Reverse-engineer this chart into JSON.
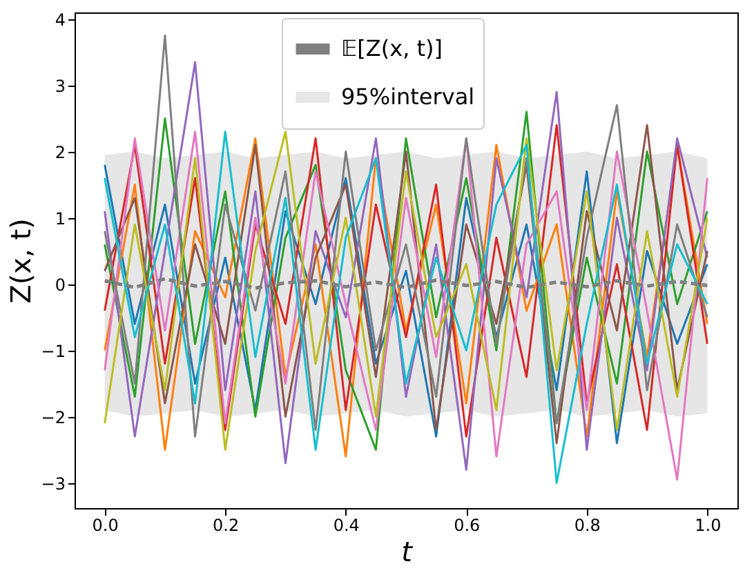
{
  "chart_data": {
    "type": "line",
    "xlabel": "t",
    "ylabel": "Z(x, t)",
    "x": [
      0,
      0.05,
      0.1,
      0.15,
      0.2,
      0.25,
      0.3,
      0.35,
      0.4,
      0.45,
      0.5,
      0.55,
      0.6,
      0.65,
      0.7,
      0.75,
      0.8,
      0.85,
      0.9,
      0.95,
      1.0
    ],
    "xlim": [
      -0.05,
      1.05
    ],
    "ylim": [
      -3.38,
      4.1
    ],
    "xticks": [
      {
        "value": 0,
        "label": "0.0"
      },
      0.2,
      0.4,
      0.6,
      0.8,
      {
        "value": 1,
        "label": "1.0"
      }
    ],
    "yticks": [
      {
        "value": -3,
        "label": "−3"
      },
      {
        "value": -2,
        "label": "−2"
      },
      {
        "value": -1,
        "label": "−1"
      },
      0,
      1,
      2,
      3,
      4
    ],
    "annotations": [
      "95%interval"
    ],
    "grid": false,
    "legend": "top",
    "marker": "none",
    "series": [
      {
        "color": "#1f77b4",
        "values": [
          1.8,
          -0.6,
          1.2,
          -1.5,
          0.4,
          -1.9,
          1.1,
          -0.3,
          1.6,
          -1.2,
          0.2,
          -2.3,
          1.3,
          -0.8,
          0.9,
          -1.6,
          1.7,
          -2.4,
          0.5,
          -0.9,
          0.3
        ]
      },
      {
        "color": "#ff7f0e",
        "values": [
          -1.0,
          1.5,
          -2.5,
          0.8,
          -0.2,
          2.2,
          -1.4,
          0.6,
          -2.6,
          1.9,
          -0.7,
          1.2,
          -1.8,
          2.1,
          -0.4,
          0.9,
          -2.3,
          1.4,
          -1.1,
          2.1,
          -0.6
        ]
      },
      {
        "color": "#2ca02c",
        "values": [
          0.6,
          -1.7,
          2.5,
          -0.9,
          1.4,
          -2.0,
          0.7,
          1.8,
          -1.3,
          -2.5,
          2.2,
          -0.5,
          1.6,
          -1.0,
          2.6,
          -2.1,
          0.4,
          -1.5,
          2.0,
          -0.3,
          1.1
        ]
      },
      {
        "color": "#d62728",
        "values": [
          -0.4,
          2.1,
          -1.2,
          1.6,
          -2.2,
          0.9,
          -0.6,
          2.2,
          -1.9,
          1.2,
          -0.8,
          1.5,
          -2.3,
          0.7,
          -1.4,
          2.4,
          -1.8,
          0.3,
          -2.2,
          2.1,
          -0.9
        ]
      },
      {
        "color": "#9467bd",
        "values": [
          1.1,
          -2.3,
          0.5,
          3.35,
          -1.6,
          1.4,
          -2.7,
          0.8,
          -0.5,
          2.2,
          -1.7,
          0.6,
          -2.8,
          1.9,
          -0.2,
          2.9,
          -2.5,
          1.0,
          -1.3,
          2.2,
          0.4
        ]
      },
      {
        "color": "#8c564b",
        "values": [
          0.2,
          1.3,
          -1.8,
          0.6,
          -0.9,
          2.1,
          -2.0,
          0.4,
          1.5,
          -1.4,
          2.0,
          -2.2,
          0.9,
          -0.6,
          1.8,
          -2.4,
          1.1,
          -0.7,
          2.4,
          -1.6,
          0.5
        ]
      },
      {
        "color": "#e377c2",
        "values": [
          -1.3,
          2.2,
          -0.7,
          2.3,
          -2.1,
          1.0,
          -1.5,
          1.7,
          -0.3,
          -2.2,
          1.3,
          -1.1,
          2.2,
          -2.6,
          0.6,
          1.4,
          -1.9,
          2.0,
          -0.4,
          -2.95,
          1.6
        ]
      },
      {
        "color": "#7f7f7f",
        "values": [
          0.8,
          -1.5,
          3.75,
          -2.3,
          1.2,
          -0.4,
          1.7,
          -2.2,
          2.0,
          -1.0,
          0.6,
          -1.7,
          2.2,
          -0.9,
          1.9,
          -2.1,
          0.7,
          2.7,
          -1.6,
          0.9,
          -0.5
        ]
      },
      {
        "color": "#bcbd22",
        "values": [
          -2.1,
          0.9,
          -1.6,
          1.9,
          -2.5,
          0.5,
          2.3,
          -1.2,
          1.0,
          -2.0,
          1.7,
          -0.8,
          0.3,
          -1.9,
          2.2,
          -1.3,
          1.4,
          -2.2,
          0.8,
          -1.7,
          1.0
        ]
      },
      {
        "color": "#17becf",
        "values": [
          1.6,
          -0.8,
          0.9,
          -1.8,
          2.3,
          -1.1,
          1.3,
          -2.5,
          0.7,
          1.9,
          -1.5,
          0.4,
          -1.0,
          1.2,
          2.1,
          -3.0,
          -0.6,
          1.5,
          -1.2,
          0.6,
          -0.3
        ]
      },
      {
        "name": "𝔼[Z(x, t)]",
        "color": "#808080",
        "line_style": "dashed",
        "lower": [
          -1.9,
          -2.0,
          -1.95,
          -1.9,
          -2.0,
          -1.95,
          -1.9,
          -2.0,
          -1.95,
          -1.9,
          -2.0,
          -1.95,
          -1.9,
          -2.0,
          -1.95,
          -1.9,
          -2.0,
          -1.95,
          -1.9,
          -2.0,
          -1.95
        ],
        "upper": [
          1.95,
          2.0,
          1.9,
          1.95,
          2.0,
          1.9,
          1.95,
          2.0,
          1.9,
          1.95,
          2.0,
          1.9,
          1.95,
          2.0,
          1.9,
          1.95,
          2.0,
          1.9,
          1.95,
          2.0,
          1.9
        ],
        "values": [
          0.05,
          -0.05,
          0.08,
          -0.03,
          0.04,
          -0.06,
          0.02,
          0.05,
          -0.04,
          0.03,
          -0.05,
          0.06,
          -0.02,
          0.04,
          -0.05,
          0.03,
          -0.04,
          0.05,
          -0.03,
          0.04,
          -0.02
        ]
      }
    ]
  }
}
